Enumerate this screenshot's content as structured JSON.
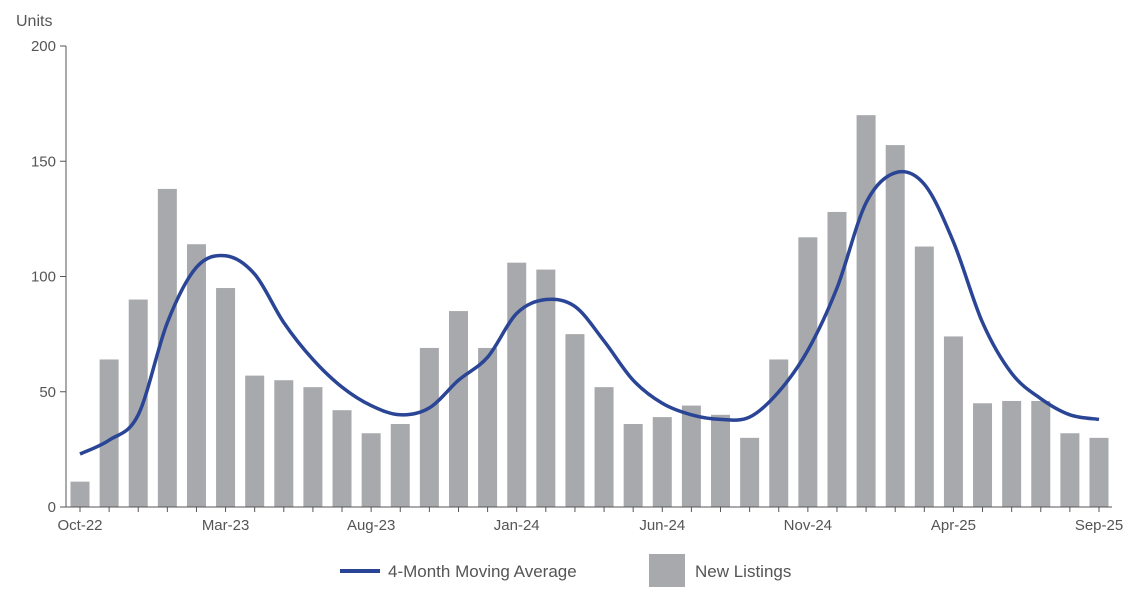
{
  "chart_data": {
    "type": "bar",
    "title": "",
    "ylabel": "Units",
    "xlabel": "",
    "ylim": [
      0,
      200
    ],
    "yticks": [
      0,
      50,
      100,
      150,
      200
    ],
    "grid": false,
    "legend_placement": "bottom-center",
    "categories": [
      "Oct-22",
      "Nov-22",
      "Dec-22",
      "Jan-23",
      "Feb-23",
      "Mar-23",
      "Apr-23",
      "May-23",
      "Jun-23",
      "Jul-23",
      "Aug-23",
      "Sep-23",
      "Oct-23",
      "Nov-23",
      "Dec-23",
      "Jan-24",
      "Feb-24",
      "Mar-24",
      "Apr-24",
      "May-24",
      "Jun-24",
      "Jul-24",
      "Aug-24",
      "Sep-24",
      "Oct-24",
      "Nov-24",
      "Dec-24",
      "Jan-25",
      "Feb-25",
      "Mar-25",
      "Apr-25",
      "May-25",
      "Jun-25",
      "Jul-25",
      "Aug-25",
      "Sep-25"
    ],
    "xtick_labels": [
      "Oct-22",
      "Mar-23",
      "Aug-23",
      "Jan-24",
      "Jun-24",
      "Nov-24",
      "Apr-25",
      "Sep-25"
    ],
    "series": [
      {
        "name": "New Listings",
        "type": "bar",
        "color": "#a7a9ac",
        "values": [
          11,
          64,
          90,
          138,
          114,
          95,
          57,
          55,
          52,
          42,
          32,
          36,
          69,
          85,
          69,
          106,
          103,
          75,
          52,
          36,
          39,
          44,
          40,
          30,
          64,
          117,
          128,
          170,
          157,
          113,
          74,
          45,
          46,
          46,
          32,
          30
        ]
      },
      {
        "name": "4-Month Moving Average",
        "type": "line",
        "color": "#2b4596",
        "values": [
          23,
          29,
          40,
          80,
          104,
          109,
          101,
          80,
          64,
          52,
          44,
          40,
          43,
          55,
          65,
          84,
          90,
          87,
          72,
          55,
          45,
          40,
          38,
          39,
          50,
          68,
          95,
          132,
          145,
          140,
          115,
          80,
          58,
          47,
          40,
          38
        ]
      }
    ]
  }
}
